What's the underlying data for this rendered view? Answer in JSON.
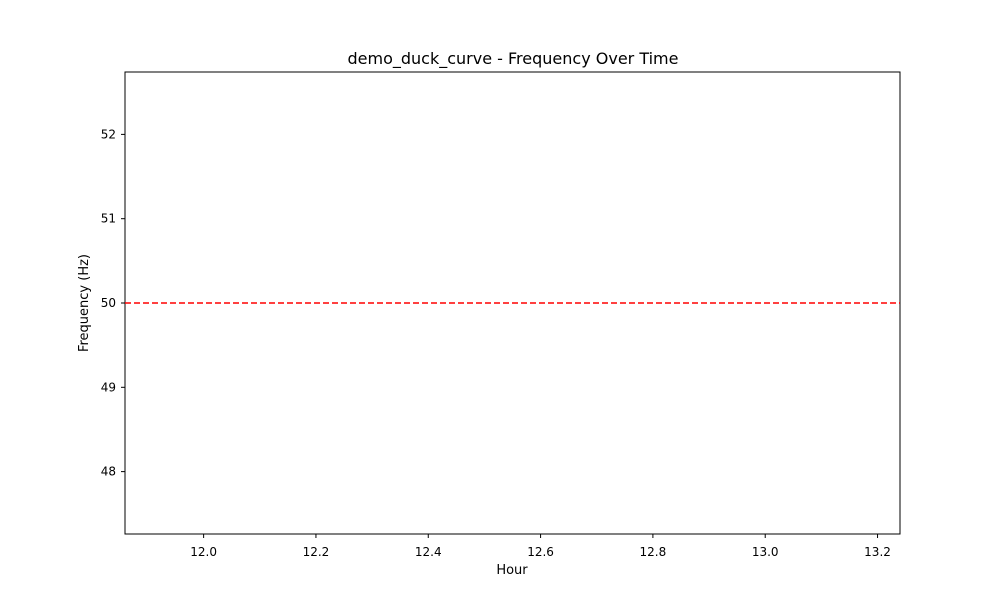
{
  "chart_data": {
    "type": "line",
    "title": "demo_duck_curve - Frequency Over Time",
    "xlabel": "Hour",
    "ylabel": "Frequency (Hz)",
    "xlim": [
      11.86,
      13.24
    ],
    "ylim": [
      47.26,
      52.74
    ],
    "x_ticks": [
      12.0,
      12.2,
      12.4,
      12.6,
      12.8,
      13.0,
      13.2
    ],
    "x_tick_labels": [
      "12.0",
      "12.2",
      "12.4",
      "12.6",
      "12.8",
      "13.0",
      "13.2"
    ],
    "y_ticks": [
      48,
      49,
      50,
      51,
      52
    ],
    "y_tick_labels": [
      "48",
      "49",
      "50",
      "51",
      "52"
    ],
    "grid": false,
    "series": [],
    "reference_lines": [
      {
        "orientation": "horizontal",
        "y": 50,
        "style": "dashed",
        "color": "#ff0000"
      }
    ]
  }
}
